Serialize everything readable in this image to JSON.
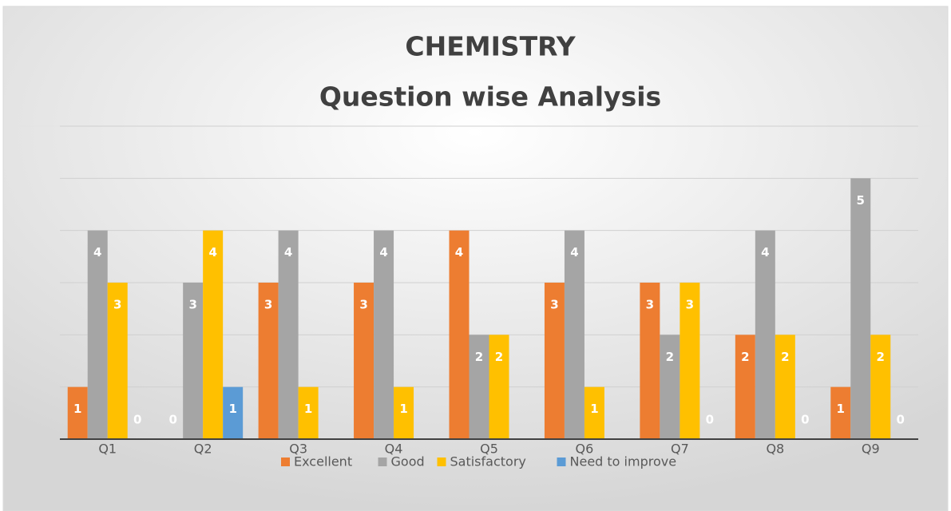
{
  "chart_data": {
    "type": "bar",
    "title": "CHEMISTRY",
    "subtitle": "Question wise Analysis",
    "categories": [
      "Q1",
      "Q2",
      "Q3",
      "Q4",
      "Q5",
      "Q6",
      "Q7",
      "Q8",
      "Q9"
    ],
    "series": [
      {
        "name": "Excellent",
        "color": "#ed7d31",
        "values": [
          1,
          0,
          3,
          3,
          4,
          3,
          3,
          2,
          1
        ]
      },
      {
        "name": "Good",
        "color": "#a5a5a5",
        "values": [
          4,
          3,
          4,
          4,
          2,
          4,
          2,
          4,
          5
        ]
      },
      {
        "name": "Satisfactory",
        "color": "#ffc000",
        "values": [
          3,
          4,
          1,
          1,
          2,
          1,
          3,
          2,
          2
        ]
      },
      {
        "name": "Need to improve",
        "color": "#5b9bd5",
        "values": [
          0,
          1,
          null,
          null,
          null,
          null,
          0,
          0,
          0
        ]
      }
    ],
    "ylim": [
      0,
      6
    ],
    "yticks": [
      0,
      1,
      2,
      3,
      4,
      5,
      6
    ],
    "grid": true,
    "legend": "bottom"
  }
}
